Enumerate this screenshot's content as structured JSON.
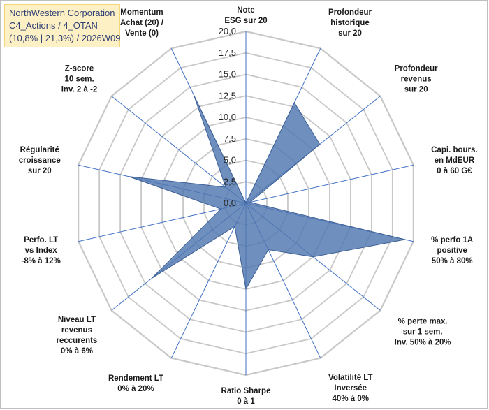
{
  "title": {
    "line1": "NorthWestern Corporation",
    "line2": "C4_Actions / 4_OTAN",
    "line3": "(10,8% | 21,3%) / 2026W09"
  },
  "colors": {
    "series": "#4f76b0",
    "grid": "#c8c8c8",
    "spoke": "#3f6fc4",
    "title_bg": "#fdf0c4"
  },
  "chart_data": {
    "type": "radar",
    "rlim": [
      0,
      20
    ],
    "ticks": [
      "0,0",
      "2,5",
      "5,0",
      "7,5",
      "10,0",
      "12,5",
      "15,0",
      "17,5",
      "20,0"
    ],
    "axes": [
      {
        "label": [
          "Note",
          "ESG sur 20"
        ],
        "value": 0
      },
      {
        "label": [
          "Profondeur",
          "historique",
          "sur 20"
        ],
        "value": 13
      },
      {
        "label": [
          "Profondeur",
          "revenus",
          "sur 20"
        ],
        "value": 11
      },
      {
        "label": [
          "Capi. bours.",
          "en MdEUR",
          "0 à 60 G€"
        ],
        "value": 0.5
      },
      {
        "label": [
          "% perfo 1A",
          "positive",
          "50% à 80%"
        ],
        "value": 19
      },
      {
        "label": [
          "% perte max.",
          "sur 1 sem.",
          "Inv. 50% à 20%"
        ],
        "value": 10
      },
      {
        "label": [
          "Volatilité LT",
          "Inversée",
          "40% à 0%"
        ],
        "value": 6
      },
      {
        "label": [
          "Ratio Sharpe",
          "0 à 1"
        ],
        "value": 10
      },
      {
        "label": [
          "Rendement LT",
          "0% à 20%"
        ],
        "value": 3
      },
      {
        "label": [
          "Niveau LT",
          "revenus",
          "reccurents",
          "0% à 6%"
        ],
        "value": 14
      },
      {
        "label": [
          "Perfo. LT",
          "vs Index",
          "-8% à 12%"
        ],
        "value": 3
      },
      {
        "label": [
          "Régularité",
          "croissance",
          "sur 20"
        ],
        "value": 14
      },
      {
        "label": [
          "Z-score",
          "10 sem.",
          "Inv. 2 à -2"
        ],
        "value": 3
      },
      {
        "label": [
          "Momentum",
          "Achat (20) /",
          "Vente (0)"
        ],
        "value": 14
      }
    ]
  }
}
